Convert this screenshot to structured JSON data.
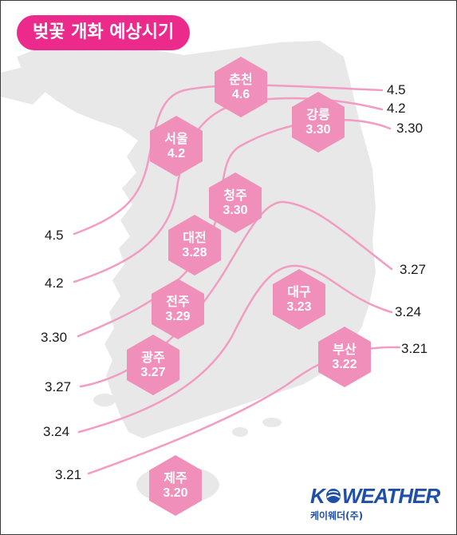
{
  "title": "벚꽃 개화 예상시기",
  "colors": {
    "accent": "#ec2a8c",
    "hexagon": "#f08fba",
    "isoline": "#f39cc3",
    "land": "#e8e8e8",
    "logo": "#1f4fa6"
  },
  "cities": [
    {
      "name": "춘천",
      "value": "4.6"
    },
    {
      "name": "강릉",
      "value": "3.30"
    },
    {
      "name": "서울",
      "value": "4.2"
    },
    {
      "name": "청주",
      "value": "3.30"
    },
    {
      "name": "대전",
      "value": "3.28"
    },
    {
      "name": "전주",
      "value": "3.29"
    },
    {
      "name": "대구",
      "value": "3.23"
    },
    {
      "name": "광주",
      "value": "3.27"
    },
    {
      "name": "부산",
      "value": "3.22"
    },
    {
      "name": "제주",
      "value": "3.20"
    }
  ],
  "isolines": {
    "right": [
      "4.5",
      "4.2",
      "3.30",
      "3.27",
      "3.24",
      "3.21"
    ],
    "left": [
      "4.5",
      "4.2",
      "3.30",
      "3.27",
      "3.24",
      "3.21"
    ]
  },
  "logo": {
    "main_left": "K",
    "main_right": "WEATHER",
    "sub": "케이웨더(주)",
    "icon": "globe-icon"
  }
}
